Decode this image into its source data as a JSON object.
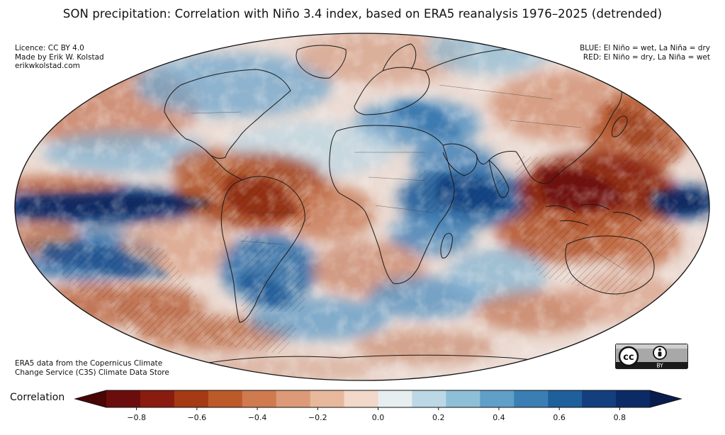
{
  "title": "SON precipitation: Correlation with Niño 3.4 index, based on ERA5 reanalysis 1976–2025 (detrended)",
  "credits": {
    "line1": "Licence: CC BY 4.0",
    "line2": "Made by Erik W. Kolstad",
    "line3": "erikwkolstad.com"
  },
  "legend_note": {
    "blue": "BLUE: El Niño = wet, La Niña = dry",
    "red": "RED: El Niño = dry, La Niña = wet"
  },
  "source": {
    "line1": "ERA5 data from the Copernicus Climate",
    "line2": "Change Service (C3S) Climate Data Store"
  },
  "license_badge": {
    "cc": "cc",
    "by": "BY"
  },
  "colorbar": {
    "label": "Correlation",
    "min": -0.9,
    "max": 0.9,
    "ticks": [
      "−0.8",
      "−0.6",
      "−0.4",
      "−0.2",
      "0.0",
      "0.2",
      "0.4",
      "0.6",
      "0.8"
    ],
    "tick_values": [
      -0.8,
      -0.6,
      -0.4,
      -0.2,
      0.0,
      0.2,
      0.4,
      0.6,
      0.8
    ],
    "colors": [
      "#6b0d0d",
      "#8a1b0f",
      "#a63a14",
      "#bd5a2a",
      "#cf7a4f",
      "#dd9a77",
      "#e8b89c",
      "#f2d8c8",
      "#e7eeef",
      "#bcd7e5",
      "#8ebfd8",
      "#5f9fc8",
      "#3a7fb4",
      "#1f5f9c",
      "#133f7e",
      "#0b2a66"
    ],
    "extend_low_color": "#4a0505",
    "extend_high_color": "#081c4e"
  },
  "map": {
    "projection": "Mollweide",
    "ocean_base": "#ecdcd4"
  }
}
